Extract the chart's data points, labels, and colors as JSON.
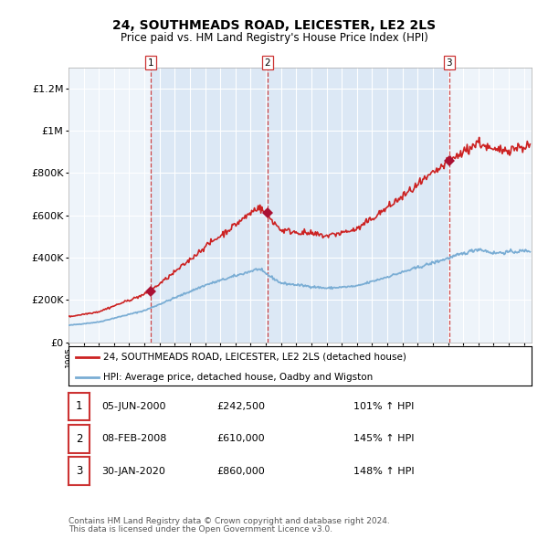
{
  "title": "24, SOUTHMEADS ROAD, LEICESTER, LE2 2LS",
  "subtitle": "Price paid vs. HM Land Registry's House Price Index (HPI)",
  "legend_line1": "24, SOUTHMEADS ROAD, LEICESTER, LE2 2LS (detached house)",
  "legend_line2": "HPI: Average price, detached house, Oadby and Wigston",
  "footer1": "Contains HM Land Registry data © Crown copyright and database right 2024.",
  "footer2": "This data is licensed under the Open Government Licence v3.0.",
  "sale_markers": [
    {
      "num": 1,
      "date": "05-JUN-2000",
      "price": 242500,
      "year": 2000.43,
      "pct": "101% ↑ HPI"
    },
    {
      "num": 2,
      "date": "08-FEB-2008",
      "price": 610000,
      "year": 2008.1,
      "pct": "145% ↑ HPI"
    },
    {
      "num": 3,
      "date": "30-JAN-2020",
      "price": 860000,
      "year": 2020.07,
      "pct": "148% ↑ HPI"
    }
  ],
  "hpi_color": "#7aadd4",
  "property_color": "#cc2222",
  "vline_color": "#cc3333",
  "marker_color": "#aa1133",
  "shade_color": "#dce8f5",
  "chart_bg": "#eef4fa",
  "ylim": [
    0,
    1300000
  ],
  "yticks": [
    0,
    200000,
    400000,
    600000,
    800000,
    1000000,
    1200000
  ],
  "ytick_labels": [
    "£0",
    "£200K",
    "£400K",
    "£600K",
    "£800K",
    "£1M",
    "£1.2M"
  ],
  "xmin": 1995,
  "xmax": 2025.5
}
